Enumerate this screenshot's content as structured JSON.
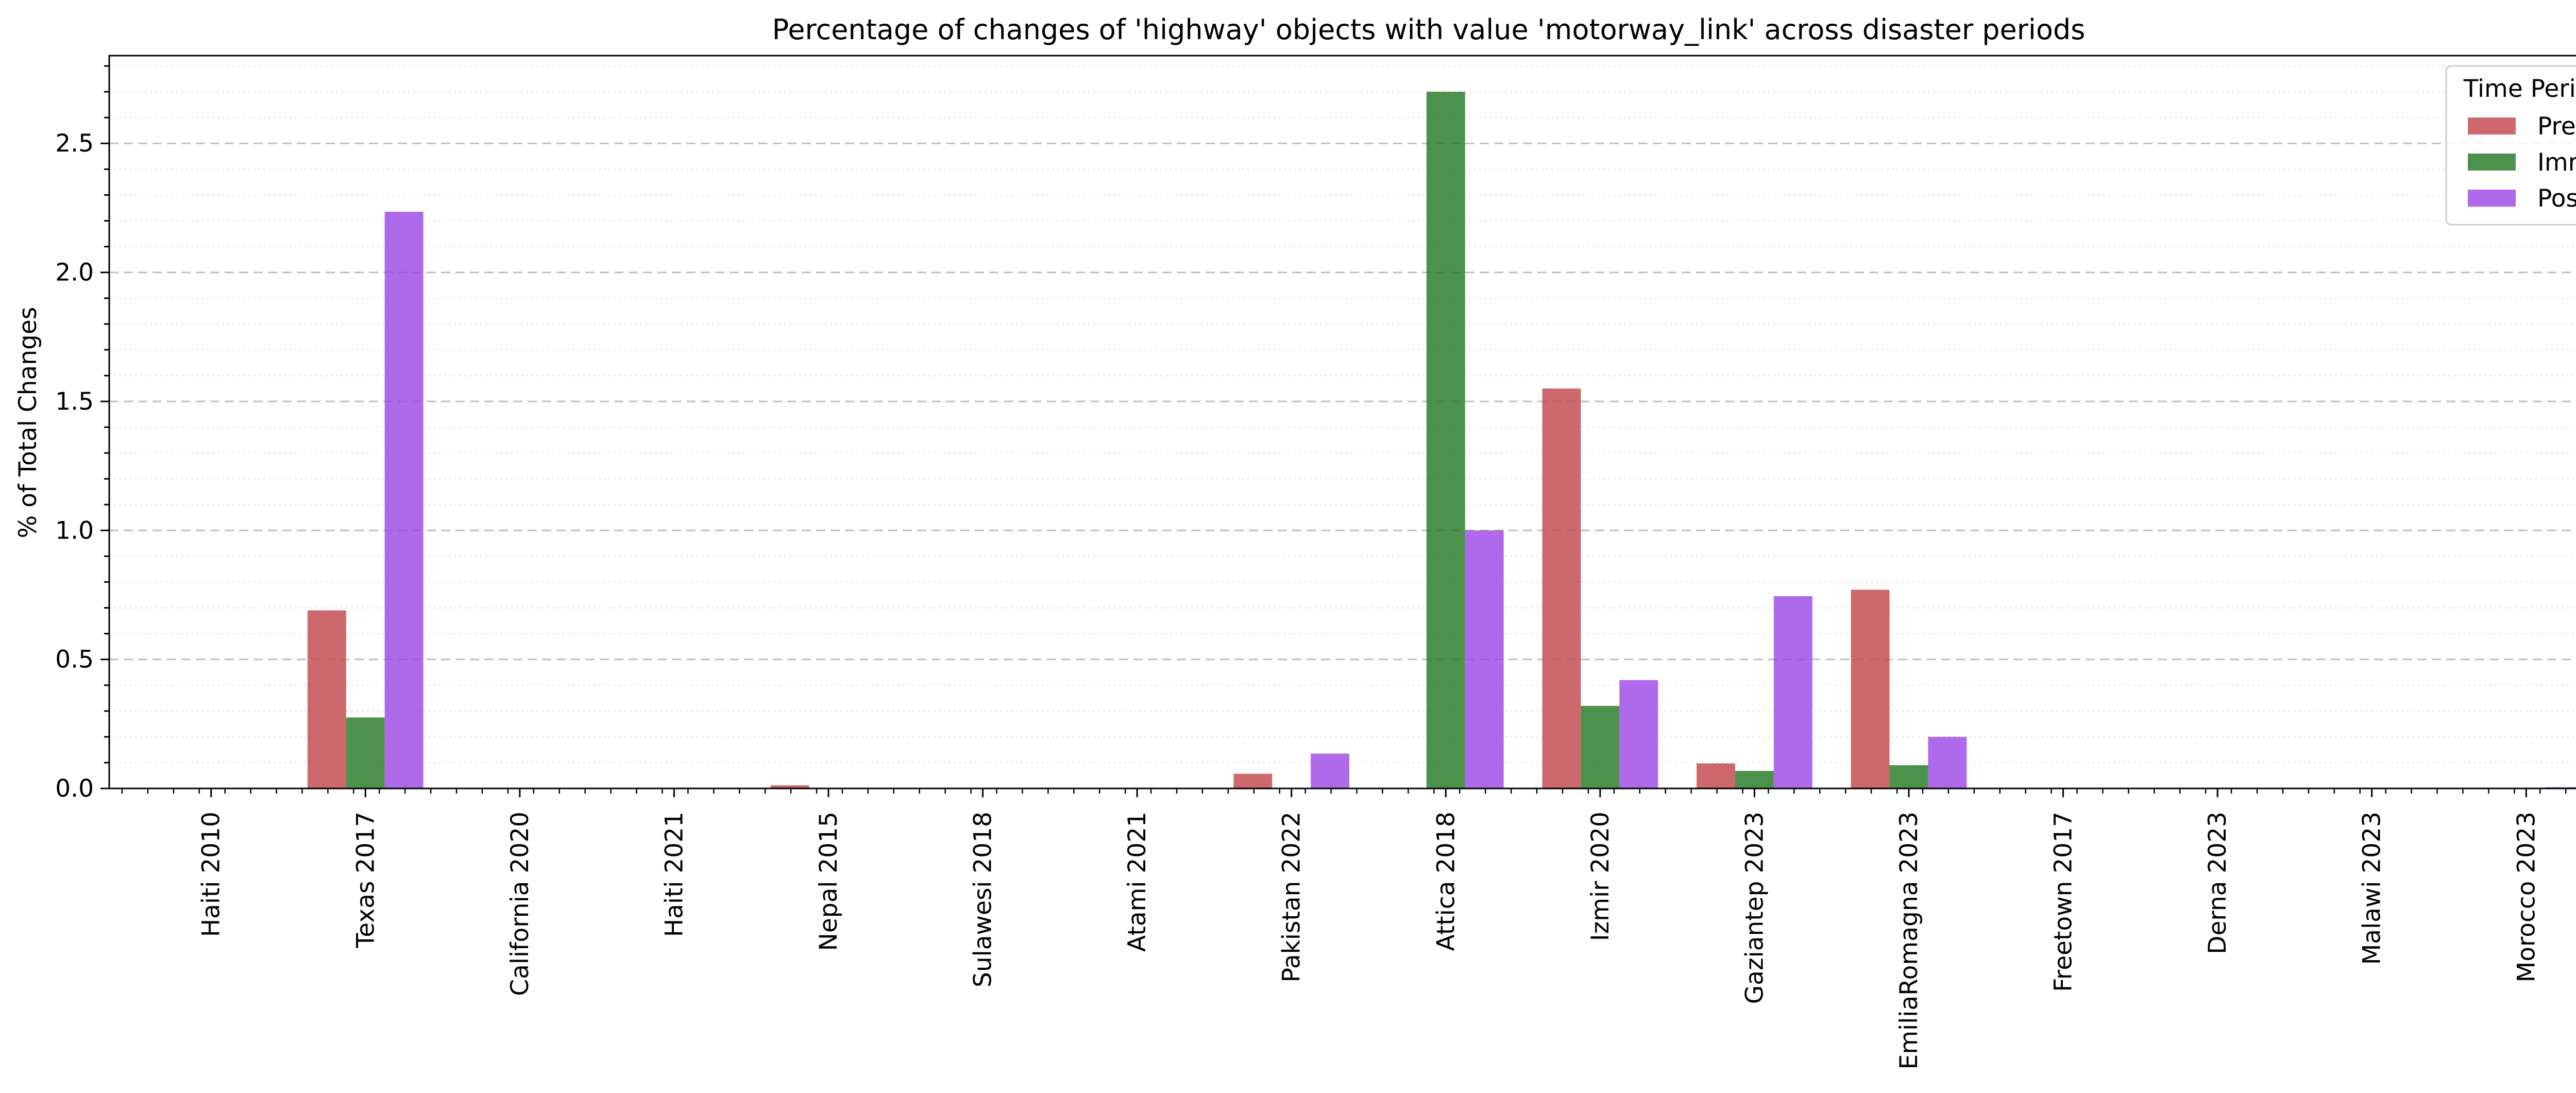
{
  "chart_data": {
    "type": "bar",
    "title": "Percentage of changes of 'highway' objects with value 'motorway_link' across disaster periods",
    "xlabel": "",
    "ylabel": "% of Total Changes",
    "categories": [
      "Haiti 2010",
      "Texas 2017",
      "California 2020",
      "Haiti 2021",
      "Nepal 2015",
      "Sulawesi 2018",
      "Atami 2021",
      "Pakistan 2022",
      "Attica 2018",
      "Izmir 2020",
      "Gaziantep 2023",
      "EmiliaRomagna 2023",
      "Freetown 2017",
      "Derna 2023",
      "Malawi 2023",
      "Morocco 2023"
    ],
    "series": [
      {
        "name": "Pre",
        "color": "#c44e52",
        "values": [
          0,
          0.69,
          0,
          0,
          0.012,
          0,
          0,
          0.057,
          0,
          1.55,
          0.097,
          0.77,
          0,
          0,
          0,
          0
        ]
      },
      {
        "name": "Imm",
        "color": "#1f771f",
        "values": [
          0,
          0.275,
          0,
          0,
          0,
          0,
          0,
          0,
          2.7,
          0.32,
          0.068,
          0.09,
          0,
          0,
          0,
          0
        ]
      },
      {
        "name": "Post",
        "color": "#9b45e6",
        "values": [
          0,
          2.235,
          0,
          0,
          0,
          0,
          0,
          0.135,
          1.0,
          0.42,
          0.745,
          0.2,
          0,
          0,
          0,
          0.005
        ]
      }
    ],
    "ylim": [
      0,
      2.84
    ],
    "yticks": [
      0.0,
      0.5,
      1.0,
      1.5,
      2.0,
      2.5
    ],
    "ytick_labels": [
      "0.0",
      "0.5",
      "1.0",
      "1.5",
      "2.0",
      "2.5"
    ],
    "grid": "y-major dashed, y-minor dotted",
    "legend": {
      "title": "Time Period",
      "placement": "top-right"
    }
  }
}
